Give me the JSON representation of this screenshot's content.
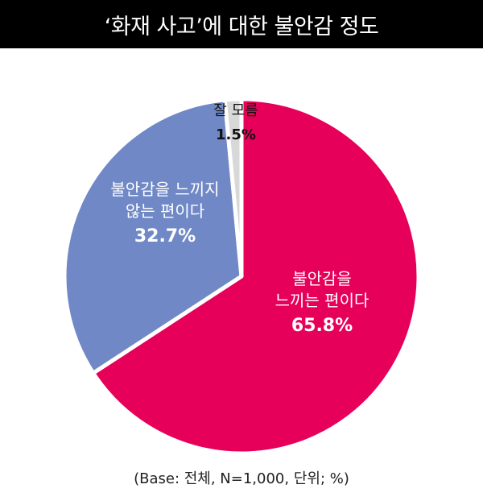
{
  "title": "‘화재 사고’에 대한 불안감 정도",
  "footnote": "(Base: 전체, N=1,000, 단위; %)",
  "chart_data": {
    "type": "pie",
    "title": "‘화재 사고’에 대한 불안감 정도",
    "slices": [
      {
        "label_lines": [
          "불안감을",
          "느끼는 편이다"
        ],
        "value_label": "65.8%",
        "value": 65.8,
        "color": "#E6005A",
        "text_color": "#ffffff"
      },
      {
        "label_lines": [
          "불안감을 느끼지",
          "않는 편이다"
        ],
        "value_label": "32.7%",
        "value": 32.7,
        "color": "#7089C6",
        "text_color": "#ffffff"
      },
      {
        "label_lines": [
          "잘 모름"
        ],
        "value_label": "1.5%",
        "value": 1.5,
        "color": "#D8D8D8",
        "text_color": "#111111"
      }
    ],
    "start": "12 o'clock",
    "direction": "clockwise"
  }
}
